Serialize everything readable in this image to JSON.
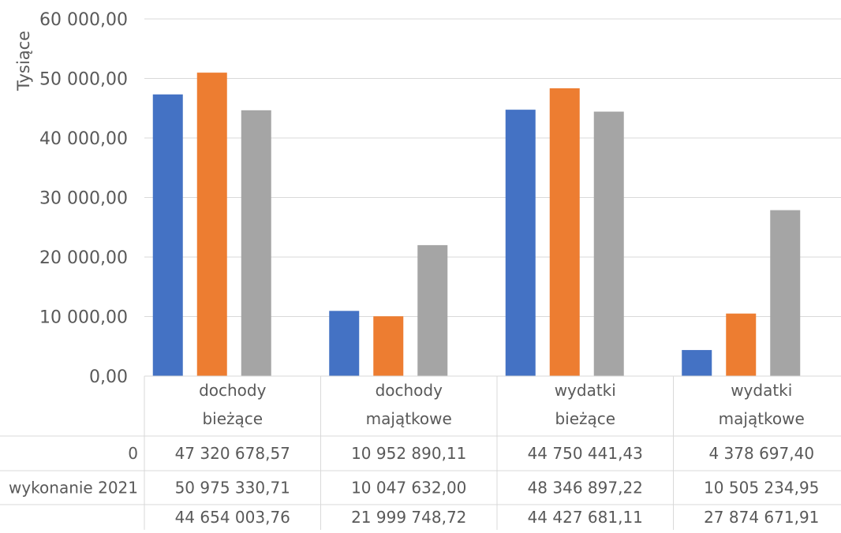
{
  "chart_data": {
    "type": "bar",
    "ylabel": "Tysiące",
    "ylim": [
      0,
      60000
    ],
    "yticks": [
      0,
      10000,
      20000,
      30000,
      40000,
      50000,
      60000
    ],
    "ytick_labels": [
      "0,00",
      "10 000,00",
      "20 000,00",
      "30 000,00",
      "40 000,00",
      "50 000,00",
      "60 000,00"
    ],
    "grid": true,
    "categories": [
      [
        "dochody",
        "bieżące"
      ],
      [
        "dochody",
        "majątkowe"
      ],
      [
        "wydatki",
        "bieżące"
      ],
      [
        "wydatki",
        "majątkowe"
      ]
    ],
    "series": [
      {
        "name": "0",
        "color": "#4472C4",
        "values": [
          47320.679,
          10952.89,
          44750.441,
          4378.697
        ],
        "labels": [
          "47 320 678,57",
          "10 952 890,11",
          "44 750 441,43",
          "4 378 697,40"
        ]
      },
      {
        "name": "wykonanie 2021",
        "color": "#ED7D31",
        "values": [
          50975.331,
          10047.632,
          48346.897,
          10505.235
        ],
        "labels": [
          "50 975 330,71",
          "10 047 632,00",
          "48 346 897,22",
          "10 505 234,95"
        ]
      },
      {
        "name": "",
        "color": "#A5A5A5",
        "values": [
          44654.004,
          21999.749,
          44427.681,
          27874.672
        ],
        "labels": [
          "44 654 003,76",
          "21 999 748,72",
          "44 427 681,11",
          "27 874 671,91"
        ]
      }
    ]
  }
}
